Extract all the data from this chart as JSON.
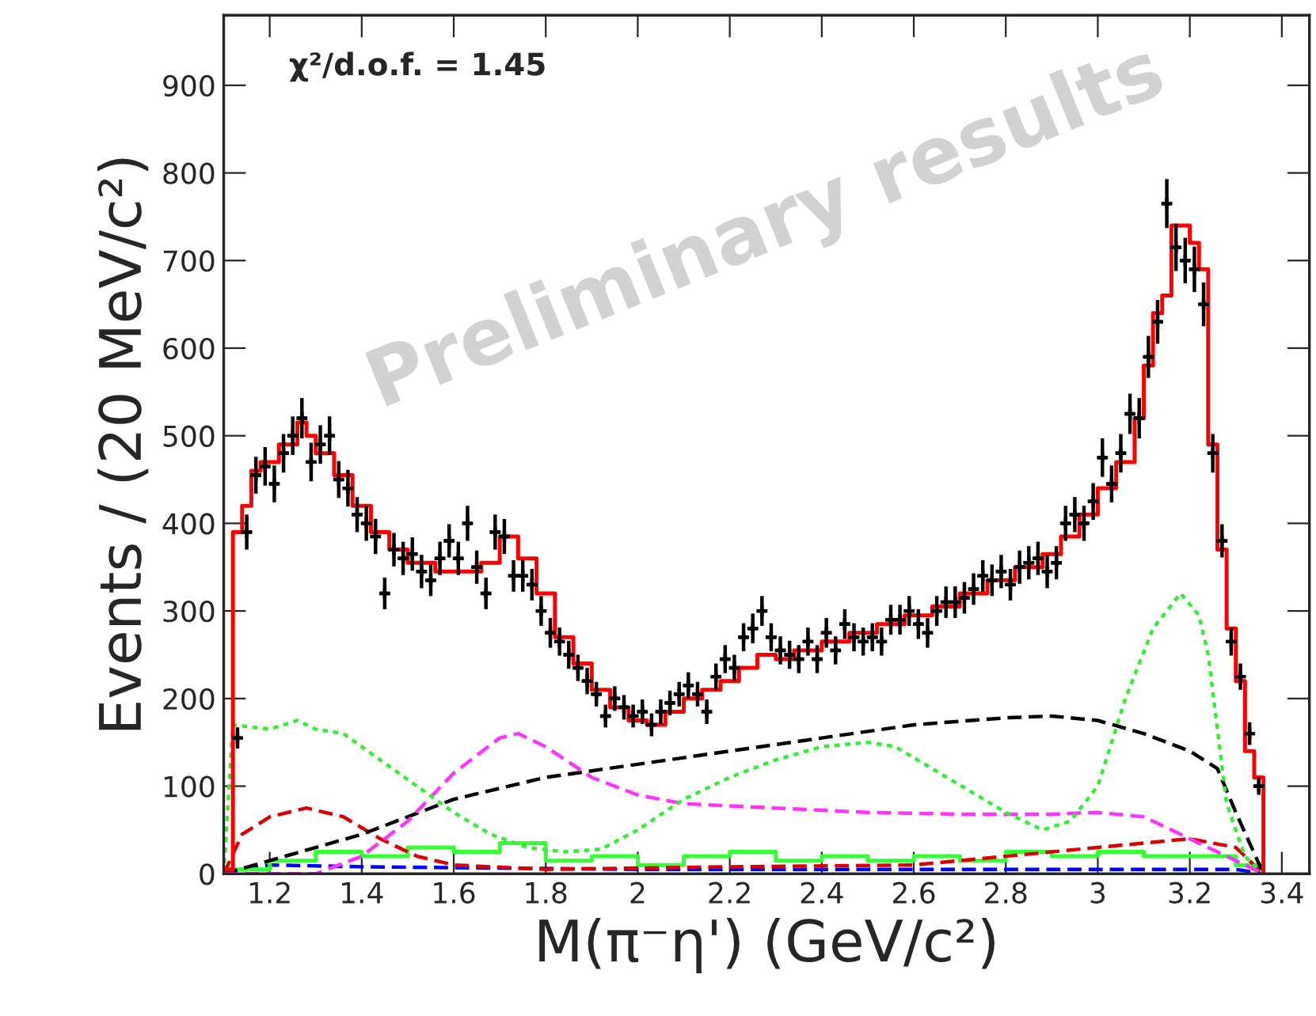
{
  "chart_data": {
    "type": "scatter",
    "xlabel": "M(π⁻η') (GeV/c²)",
    "ylabel": "Events / (20 MeV/c²)",
    "xlim": [
      1.1,
      3.46
    ],
    "ylim": [
      0,
      980
    ],
    "xticks": [
      1.2,
      1.4,
      1.6,
      1.8,
      2,
      2.2,
      2.4,
      2.6,
      2.8,
      3,
      3.2,
      3.4
    ],
    "yticks": [
      0,
      100,
      200,
      300,
      400,
      500,
      600,
      700,
      800,
      900
    ],
    "grid": false,
    "legend": false,
    "annotations": [
      "χ²/d.o.f. = 1.45",
      "Preliminary results"
    ],
    "series": [
      {
        "type": "line",
        "line_style": "dashed",
        "color": "#0000ff",
        "x": [
          1.1,
          1.2,
          1.4,
          2.0,
          3.0,
          3.3,
          3.36
        ],
        "values": [
          0,
          10,
          8,
          5,
          5,
          5,
          0
        ]
      },
      {
        "type": "step",
        "line_style": "solid",
        "color": "#33ff33",
        "x": [
          1.1,
          1.2,
          1.3,
          1.4,
          1.5,
          1.6,
          1.7,
          1.8,
          1.9,
          2.0,
          2.1,
          2.2,
          2.3,
          2.4,
          2.5,
          2.6,
          2.7,
          2.8,
          2.9,
          3.0,
          3.1,
          3.2,
          3.3,
          3.36
        ],
        "values": [
          5,
          15,
          25,
          20,
          30,
          25,
          35,
          15,
          20,
          10,
          20,
          25,
          15,
          20,
          15,
          20,
          15,
          25,
          20,
          25,
          20,
          20,
          10,
          0
        ]
      },
      {
        "type": "line",
        "line_style": "dashed",
        "color": "#dd0000",
        "x": [
          1.1,
          1.14,
          1.2,
          1.28,
          1.36,
          1.44,
          1.52,
          1.6,
          1.8,
          2.2,
          2.6,
          2.8,
          3.0,
          3.1,
          3.2,
          3.3,
          3.36
        ],
        "values": [
          0,
          45,
          65,
          75,
          65,
          40,
          20,
          10,
          5,
          8,
          10,
          20,
          30,
          35,
          40,
          30,
          0
        ]
      },
      {
        "type": "line",
        "line_style": "dashed",
        "color": "#000000",
        "x": [
          1.1,
          1.2,
          1.4,
          1.6,
          1.8,
          2.0,
          2.2,
          2.4,
          2.6,
          2.8,
          2.9,
          3.0,
          3.1,
          3.2,
          3.26,
          3.3,
          3.36
        ],
        "values": [
          0,
          15,
          45,
          85,
          110,
          125,
          140,
          155,
          170,
          178,
          180,
          175,
          160,
          140,
          120,
          70,
          0
        ]
      },
      {
        "type": "line",
        "line_style": "dashed",
        "color": "#ff33ff",
        "x": [
          1.1,
          1.3,
          1.4,
          1.5,
          1.6,
          1.7,
          1.74,
          1.8,
          1.9,
          2.0,
          2.1,
          2.3,
          2.5,
          2.7,
          2.9,
          3.0,
          3.1,
          3.2,
          3.3,
          3.36
        ],
        "values": [
          0,
          0,
          20,
          60,
          115,
          155,
          160,
          145,
          110,
          90,
          80,
          75,
          70,
          68,
          68,
          70,
          65,
          40,
          15,
          0
        ]
      },
      {
        "type": "line",
        "line_style": "dotted",
        "color": "#33ee33",
        "x": [
          1.1,
          1.12,
          1.2,
          1.26,
          1.3,
          1.36,
          1.44,
          1.52,
          1.6,
          1.68,
          1.76,
          1.84,
          1.92,
          2.0,
          2.1,
          2.2,
          2.3,
          2.4,
          2.5,
          2.56,
          2.64,
          2.72,
          2.8,
          2.88,
          2.94,
          3.0,
          3.06,
          3.12,
          3.18,
          3.22,
          3.24,
          3.28,
          3.32,
          3.36
        ],
        "values": [
          0,
          170,
          165,
          175,
          165,
          160,
          130,
          100,
          70,
          45,
          30,
          25,
          28,
          50,
          85,
          110,
          130,
          145,
          150,
          145,
          120,
          95,
          70,
          50,
          60,
          100,
          200,
          280,
          320,
          295,
          250,
          80,
          20,
          0
        ]
      },
      {
        "type": "step",
        "line_style": "solid",
        "color": "#ff0000",
        "x": [
          1.1,
          1.12,
          1.14,
          1.16,
          1.18,
          1.22,
          1.26,
          1.28,
          1.3,
          1.34,
          1.38,
          1.42,
          1.46,
          1.5,
          1.56,
          1.62,
          1.66,
          1.7,
          1.74,
          1.78,
          1.82,
          1.86,
          1.9,
          1.94,
          1.98,
          2.02,
          2.06,
          2.1,
          2.14,
          2.18,
          2.22,
          2.26,
          2.3,
          2.34,
          2.4,
          2.46,
          2.52,
          2.58,
          2.64,
          2.7,
          2.76,
          2.82,
          2.88,
          2.92,
          2.96,
          3.0,
          3.04,
          3.08,
          3.1,
          3.12,
          3.14,
          3.16,
          3.18,
          3.2,
          3.22,
          3.24,
          3.26,
          3.28,
          3.3,
          3.32,
          3.34,
          3.36
        ],
        "values": [
          5,
          390,
          420,
          460,
          470,
          490,
          515,
          500,
          480,
          455,
          420,
          390,
          370,
          355,
          345,
          345,
          355,
          385,
          360,
          320,
          270,
          240,
          210,
          190,
          175,
          170,
          185,
          200,
          210,
          220,
          235,
          250,
          245,
          255,
          265,
          275,
          285,
          295,
          305,
          320,
          335,
          350,
          365,
          385,
          410,
          440,
          470,
          520,
          580,
          640,
          660,
          740,
          740,
          720,
          690,
          490,
          370,
          280,
          220,
          140,
          110,
          0
        ]
      },
      {
        "marker": "cross",
        "color": "#000000",
        "x": [
          1.13,
          1.15,
          1.17,
          1.19,
          1.21,
          1.23,
          1.25,
          1.27,
          1.29,
          1.31,
          1.33,
          1.35,
          1.37,
          1.39,
          1.41,
          1.43,
          1.45,
          1.47,
          1.49,
          1.51,
          1.53,
          1.55,
          1.57,
          1.59,
          1.61,
          1.63,
          1.65,
          1.67,
          1.69,
          1.71,
          1.73,
          1.75,
          1.77,
          1.79,
          1.81,
          1.83,
          1.85,
          1.87,
          1.89,
          1.91,
          1.93,
          1.95,
          1.97,
          1.99,
          2.01,
          2.03,
          2.05,
          2.07,
          2.09,
          2.11,
          2.13,
          2.15,
          2.17,
          2.19,
          2.21,
          2.23,
          2.25,
          2.27,
          2.29,
          2.31,
          2.33,
          2.35,
          2.37,
          2.39,
          2.41,
          2.43,
          2.45,
          2.47,
          2.49,
          2.51,
          2.53,
          2.55,
          2.57,
          2.59,
          2.61,
          2.63,
          2.65,
          2.67,
          2.69,
          2.71,
          2.73,
          2.75,
          2.77,
          2.79,
          2.81,
          2.83,
          2.85,
          2.87,
          2.89,
          2.91,
          2.93,
          2.95,
          2.97,
          2.99,
          3.01,
          3.03,
          3.05,
          3.07,
          3.09,
          3.11,
          3.13,
          3.15,
          3.17,
          3.19,
          3.21,
          3.23,
          3.25,
          3.27,
          3.29,
          3.31,
          3.33,
          3.35
        ],
        "values": [
          155,
          390,
          455,
          465,
          445,
          480,
          500,
          520,
          470,
          490,
          500,
          450,
          440,
          410,
          400,
          385,
          320,
          370,
          360,
          365,
          345,
          335,
          360,
          380,
          360,
          400,
          350,
          320,
          390,
          385,
          340,
          340,
          330,
          300,
          275,
          265,
          250,
          235,
          220,
          205,
          180,
          200,
          190,
          180,
          185,
          170,
          185,
          195,
          205,
          215,
          205,
          185,
          225,
          245,
          235,
          270,
          280,
          300,
          270,
          255,
          250,
          245,
          265,
          245,
          275,
          255,
          285,
          270,
          265,
          270,
          265,
          290,
          290,
          300,
          285,
          275,
          300,
          310,
          310,
          315,
          325,
          340,
          335,
          345,
          330,
          350,
          355,
          360,
          345,
          355,
          400,
          410,
          400,
          425,
          475,
          445,
          480,
          525,
          520,
          590,
          630,
          765,
          715,
          700,
          690,
          650,
          480,
          380,
          265,
          225,
          160,
          100
        ],
        "errors": [
          12,
          20,
          21,
          22,
          21,
          22,
          22,
          23,
          22,
          22,
          22,
          21,
          21,
          20,
          20,
          20,
          18,
          19,
          19,
          19,
          19,
          18,
          19,
          19,
          19,
          20,
          19,
          18,
          20,
          20,
          18,
          18,
          18,
          17,
          17,
          16,
          16,
          15,
          15,
          14,
          13,
          14,
          14,
          13,
          14,
          13,
          14,
          14,
          14,
          15,
          14,
          14,
          15,
          16,
          15,
          16,
          17,
          17,
          16,
          16,
          16,
          16,
          16,
          16,
          17,
          16,
          17,
          16,
          16,
          16,
          16,
          17,
          17,
          17,
          17,
          17,
          17,
          18,
          18,
          18,
          18,
          18,
          18,
          19,
          18,
          19,
          19,
          19,
          19,
          19,
          20,
          20,
          20,
          21,
          22,
          21,
          22,
          23,
          23,
          24,
          25,
          28,
          27,
          26,
          26,
          25,
          22,
          19,
          16,
          15,
          13,
          10
        ],
        "xerrors": [
          0.01,
          0.01,
          0.01,
          0.01,
          0.01,
          0.01,
          0.01,
          0.01,
          0.01,
          0.01,
          0.01,
          0.01,
          0.01,
          0.01,
          0.01,
          0.01,
          0.01,
          0.01,
          0.01,
          0.01,
          0.01,
          0.01,
          0.01,
          0.01,
          0.01,
          0.01,
          0.01,
          0.01,
          0.01,
          0.01,
          0.01,
          0.01,
          0.01,
          0.01,
          0.01,
          0.01,
          0.01,
          0.01,
          0.01,
          0.01,
          0.01,
          0.01,
          0.01,
          0.01,
          0.01,
          0.01,
          0.01,
          0.01,
          0.01,
          0.01,
          0.01,
          0.01,
          0.01,
          0.01,
          0.01,
          0.01,
          0.01,
          0.01,
          0.01,
          0.01,
          0.01,
          0.01,
          0.01,
          0.01,
          0.01,
          0.01,
          0.01,
          0.01,
          0.01,
          0.01,
          0.01,
          0.01,
          0.01,
          0.01,
          0.01,
          0.01,
          0.01,
          0.01,
          0.01,
          0.01,
          0.01,
          0.01,
          0.01,
          0.01,
          0.01,
          0.01,
          0.01,
          0.01,
          0.01,
          0.01,
          0.01,
          0.01,
          0.01,
          0.01,
          0.01,
          0.01,
          0.01,
          0.01,
          0.01,
          0.01,
          0.01,
          0.01,
          0.01,
          0.01,
          0.01,
          0.01,
          0.01,
          0.01,
          0.01,
          0.01,
          0.01,
          0.01
        ]
      }
    ]
  }
}
